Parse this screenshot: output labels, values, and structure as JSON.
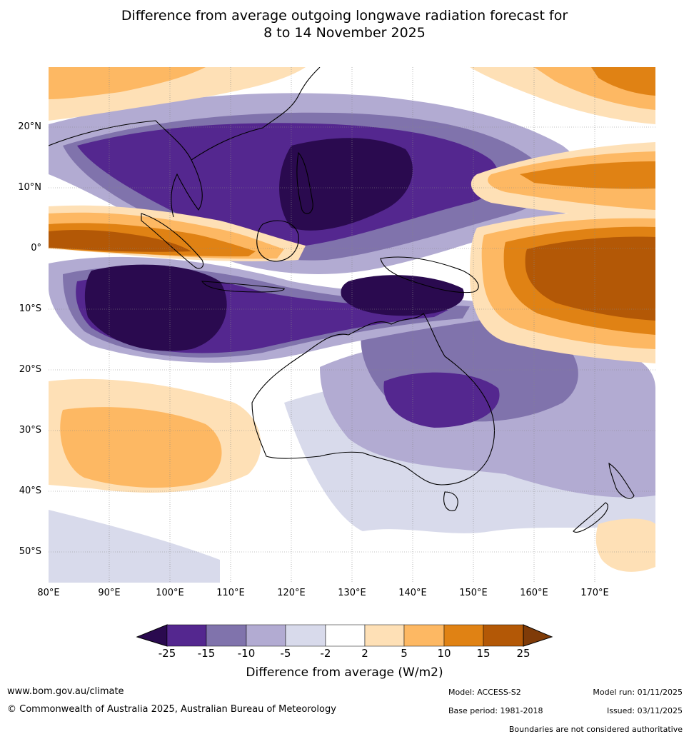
{
  "title": {
    "line1": "Difference from average outgoing longwave radiation forecast for",
    "line2": "8 to 14 November 2025"
  },
  "map": {
    "lat_labels": [
      "20°N",
      "10°N",
      "0°",
      "10°S",
      "20°S",
      "30°S",
      "40°S",
      "50°S"
    ],
    "lon_labels": [
      "80°E",
      "90°E",
      "100°E",
      "110°E",
      "120°E",
      "130°E",
      "140°E",
      "150°E",
      "160°E",
      "170°E"
    ]
  },
  "colorbar": {
    "ticks": [
      "-25",
      "-15",
      "-10",
      "-5",
      "-2",
      "2",
      "5",
      "10",
      "15",
      "25"
    ],
    "colors": [
      "#2a0a4f",
      "#54278f",
      "#8073ac",
      "#b2abd2",
      "#d8daeb",
      "#ffffff",
      "#fee0b6",
      "#fdb863",
      "#e08214",
      "#b35806",
      "#7f3b08"
    ],
    "label": "Difference from average (W/m2)"
  },
  "footer": {
    "website": "www.bom.gov.au/climate",
    "copyright": "© Commonwealth of Australia 2025, Australian Bureau of Meteorology",
    "model": "Model: ACCESS-S2",
    "base_period": "Base period: 1981-2018",
    "model_run": "Model run: 01/11/2025",
    "issued": "Issued: 03/11/2025",
    "disclaimer": "Boundaries are not considered authoritative"
  }
}
